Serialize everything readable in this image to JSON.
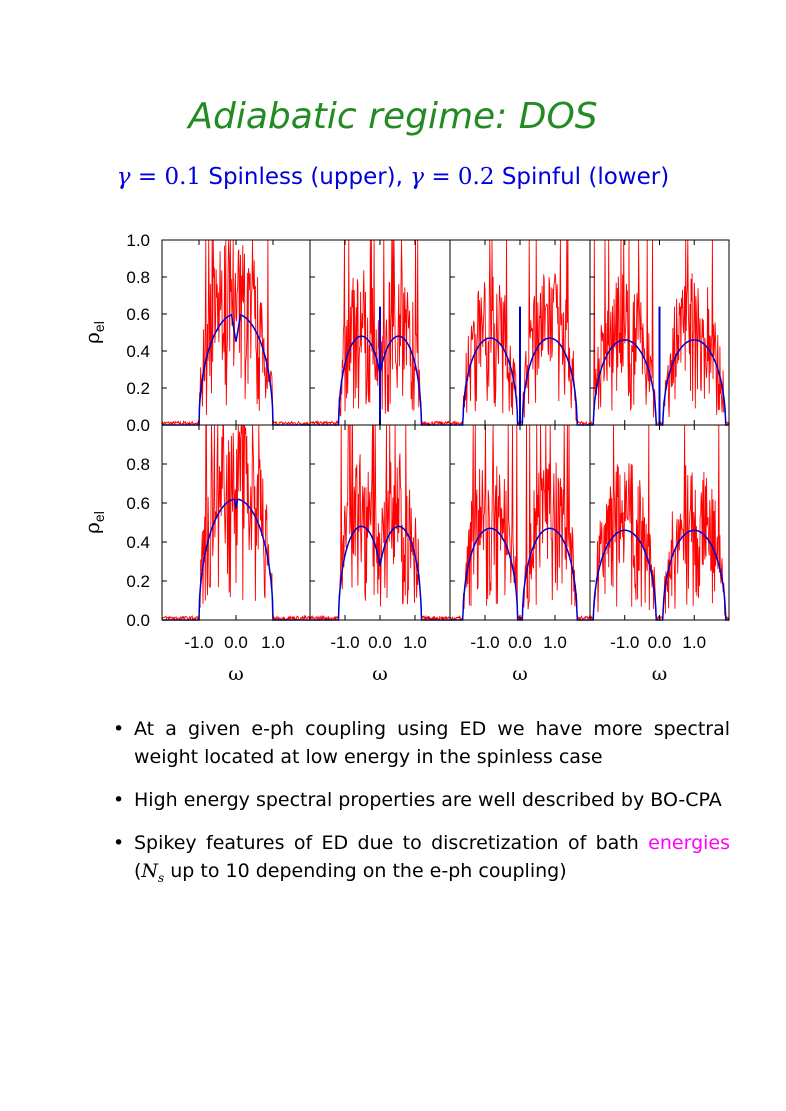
{
  "slide": {
    "title": "Adiabatic regime: DOS",
    "subtitle": {
      "gamma_sym": "γ",
      "eq1": " = 0.1",
      "text1": " Spinless (upper), ",
      "eq2": " = 0.2",
      "text2": " Spinful (lower)"
    },
    "bullets": [
      {
        "text": "At a given e-ph coupling using ED we have more spectral weight located at low energy in the spinless case"
      },
      {
        "text": "High energy spectral properties are well described by BO-CPA"
      },
      {
        "pre": "Spikey features of ED due to discretization of bath ",
        "highlight": "energies",
        "mid": " (",
        "n_sym": "N",
        "n_sub": "s",
        "post": " up to 10 depending on the e-ph coupling)"
      }
    ],
    "bullet_symbol": "•"
  },
  "chart_data": {
    "type": "line",
    "colors": {
      "ed": "#ff0000",
      "bocpa": "#0000cc"
    },
    "ylabel": "ρel",
    "xlabel": "ω",
    "ylim": [
      0.0,
      1.0
    ],
    "xlim": [
      -2.0,
      2.0
    ],
    "x_tick_labels": [
      "-1.0",
      "0.0",
      "1.0"
    ],
    "y_tick_labels_top": [
      "1.0",
      "0.8",
      "0.6",
      "0.4",
      "0.2",
      "0.0"
    ],
    "y_tick_labels_bottom": [
      "0.8",
      "0.6",
      "0.4",
      "0.2",
      "0.0"
    ],
    "rows": [
      {
        "name": "Spinless (upper)",
        "panels": [
          {
            "bocpa_bands": [
              {
                "center": 0.0,
                "half": 1.0,
                "height": 0.6
              }
            ],
            "bocpa_dip": 0.45,
            "bocpa_spike": null
          },
          {
            "bocpa_bands": [
              {
                "center": -0.53,
                "half": 0.65,
                "height": 0.48
              },
              {
                "center": 0.53,
                "half": 0.65,
                "height": 0.48
              }
            ],
            "bocpa_spike": 0.64
          },
          {
            "bocpa_bands": [
              {
                "center": -0.85,
                "half": 0.78,
                "height": 0.47
              },
              {
                "center": 0.85,
                "half": 0.78,
                "height": 0.47
              }
            ],
            "bocpa_spike": 0.64
          },
          {
            "bocpa_bands": [
              {
                "center": -1.0,
                "half": 0.9,
                "height": 0.46
              },
              {
                "center": 1.0,
                "half": 0.9,
                "height": 0.46
              }
            ],
            "bocpa_spike": 0.64
          }
        ]
      },
      {
        "name": "Spinful (lower)",
        "panels": [
          {
            "bocpa_bands": [
              {
                "center": 0.0,
                "half": 1.0,
                "height": 0.62
              }
            ],
            "bocpa_dip": 0.57,
            "bocpa_spike": null
          },
          {
            "bocpa_bands": [
              {
                "center": -0.53,
                "half": 0.65,
                "height": 0.48
              },
              {
                "center": 0.53,
                "half": 0.65,
                "height": 0.48
              }
            ],
            "bocpa_spike": null
          },
          {
            "bocpa_bands": [
              {
                "center": -0.85,
                "half": 0.78,
                "height": 0.47
              },
              {
                "center": 0.85,
                "half": 0.78,
                "height": 0.47
              }
            ],
            "bocpa_spike": null
          },
          {
            "bocpa_bands": [
              {
                "center": -1.0,
                "half": 0.9,
                "height": 0.46
              },
              {
                "center": 1.0,
                "half": 0.9,
                "height": 0.46
              }
            ],
            "bocpa_spike": null
          }
        ]
      }
    ]
  }
}
